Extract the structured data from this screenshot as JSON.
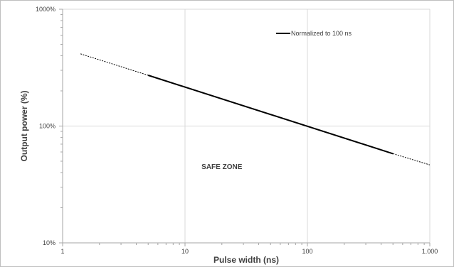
{
  "chart_data": {
    "type": "line",
    "x_scale": "log",
    "y_scale": "log",
    "xlim": [
      1,
      1000
    ],
    "ylim": [
      10,
      1000
    ],
    "xlabel": "Pulse width (ns)",
    "ylabel": "Output power (%)",
    "x_ticks": [
      {
        "value": 1,
        "label": "1"
      },
      {
        "value": 10,
        "label": "10"
      },
      {
        "value": 100,
        "label": "100"
      },
      {
        "value": 1000,
        "label": "1.000"
      }
    ],
    "y_ticks": [
      {
        "value": 10,
        "label": "10%"
      },
      {
        "value": 100,
        "label": "100%"
      },
      {
        "value": 1000,
        "label": "1000%"
      }
    ],
    "grid": true,
    "legend_position": "top-right",
    "series": [
      {
        "name": "Normalized to 100 ns",
        "style": "solid",
        "color": "#000000",
        "x": [
          5,
          500
        ],
        "y": [
          272,
          58
        ]
      },
      {
        "name": "",
        "style": "dashed",
        "color": "#000000",
        "x": [
          1.4,
          5
        ],
        "y": [
          415,
          272
        ]
      },
      {
        "name": "",
        "style": "dashed",
        "color": "#000000",
        "x": [
          500,
          1000
        ],
        "y": [
          58,
          46.5
        ]
      }
    ],
    "annotations": [
      {
        "text": "SAFE ZONE",
        "x": 20,
        "y": 43
      }
    ]
  }
}
